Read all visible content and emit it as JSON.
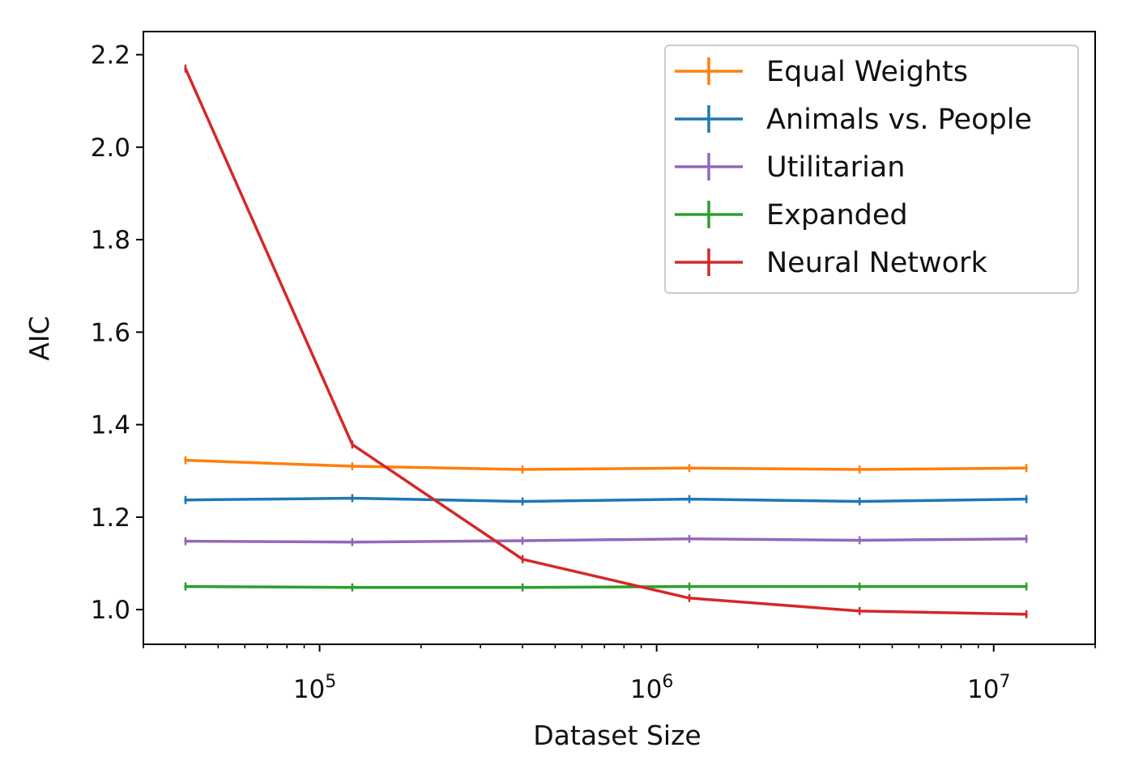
{
  "chart_data": {
    "type": "line",
    "title": "",
    "xlabel": "Dataset Size",
    "ylabel": "AIC",
    "xscale": "log",
    "xlim": [
      30000,
      20000000
    ],
    "ylim": [
      0.925,
      2.25
    ],
    "grid": false,
    "legend_position": "top-right",
    "x": [
      40000,
      125000,
      400000,
      1250000,
      4000000,
      12500000
    ],
    "series": [
      {
        "name": "Equal Weights",
        "color": "#ff7f0e",
        "values": [
          1.323,
          1.31,
          1.303,
          1.306,
          1.303,
          1.306
        ]
      },
      {
        "name": "Animals vs. People",
        "color": "#1f77b4",
        "values": [
          1.237,
          1.241,
          1.234,
          1.239,
          1.234,
          1.239
        ]
      },
      {
        "name": "Utilitarian",
        "color": "#9467bd",
        "values": [
          1.148,
          1.146,
          1.149,
          1.153,
          1.15,
          1.153
        ]
      },
      {
        "name": "Expanded",
        "color": "#2ca02c",
        "values": [
          1.05,
          1.048,
          1.048,
          1.05,
          1.05,
          1.05
        ]
      },
      {
        "name": "Neural Network",
        "color": "#d62728",
        "values": [
          2.17,
          1.357,
          1.109,
          1.025,
          0.997,
          0.99
        ]
      }
    ],
    "xticks": [
      {
        "value": 100000,
        "base": "10",
        "exp": "5"
      },
      {
        "value": 1000000,
        "base": "10",
        "exp": "6"
      },
      {
        "value": 10000000,
        "base": "10",
        "exp": "7"
      }
    ],
    "yticks": [
      {
        "value": 1.0,
        "label": "1.0"
      },
      {
        "value": 1.2,
        "label": "1.2"
      },
      {
        "value": 1.4,
        "label": "1.4"
      },
      {
        "value": 1.6,
        "label": "1.6"
      },
      {
        "value": 1.8,
        "label": "1.8"
      },
      {
        "value": 2.0,
        "label": "2.0"
      },
      {
        "value": 2.2,
        "label": "2.2"
      }
    ]
  }
}
